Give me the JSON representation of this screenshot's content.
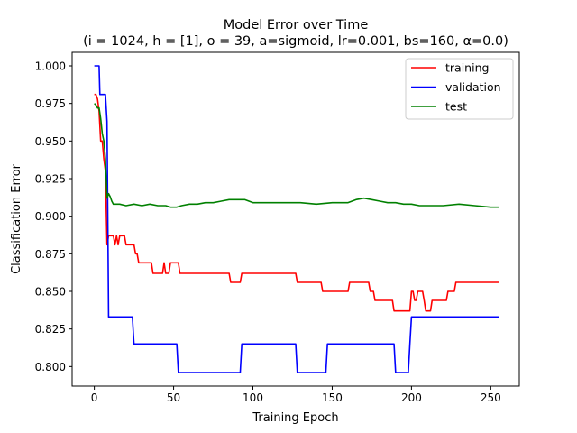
{
  "chart_data": {
    "type": "line",
    "title": "Model Error over Time",
    "subtitle": "(i = 1024, h = [1], o = 39, a=sigmoid, lr=0.001, bs=160, α=0.0)",
    "xlabel": "Training Epoch",
    "ylabel": "Classification Error",
    "xlim": [
      -14,
      268
    ],
    "ylim": [
      0.787,
      1.009
    ],
    "xticks": [
      0,
      50,
      100,
      150,
      200,
      250
    ],
    "yticks": [
      0.8,
      0.825,
      0.85,
      0.875,
      0.9,
      0.925,
      0.95,
      0.975,
      1.0
    ],
    "ytick_format": 3,
    "grid": false,
    "legend_position": "top-right",
    "series": [
      {
        "name": "training",
        "color": "#ff0000",
        "points": [
          [
            0,
            0.981
          ],
          [
            1,
            0.981
          ],
          [
            2,
            0.978
          ],
          [
            3,
            0.97
          ],
          [
            4,
            0.95
          ],
          [
            5,
            0.95
          ],
          [
            6,
            0.938
          ],
          [
            7,
            0.93
          ],
          [
            8,
            0.881
          ],
          [
            9,
            0.887
          ],
          [
            12,
            0.887
          ],
          [
            13,
            0.881
          ],
          [
            14,
            0.887
          ],
          [
            15,
            0.881
          ],
          [
            16,
            0.887
          ],
          [
            19,
            0.887
          ],
          [
            20,
            0.881
          ],
          [
            25,
            0.881
          ],
          [
            26,
            0.875
          ],
          [
            27,
            0.875
          ],
          [
            28,
            0.869
          ],
          [
            36,
            0.869
          ],
          [
            37,
            0.862
          ],
          [
            43,
            0.862
          ],
          [
            44,
            0.869
          ],
          [
            45,
            0.862
          ],
          [
            47,
            0.862
          ],
          [
            48,
            0.869
          ],
          [
            53,
            0.869
          ],
          [
            54,
            0.862
          ],
          [
            85,
            0.862
          ],
          [
            86,
            0.856
          ],
          [
            92,
            0.856
          ],
          [
            93,
            0.862
          ],
          [
            127,
            0.862
          ],
          [
            128,
            0.856
          ],
          [
            143,
            0.856
          ],
          [
            144,
            0.85
          ],
          [
            160,
            0.85
          ],
          [
            161,
            0.856
          ],
          [
            173,
            0.856
          ],
          [
            174,
            0.85
          ],
          [
            176,
            0.85
          ],
          [
            177,
            0.844
          ],
          [
            188,
            0.844
          ],
          [
            189,
            0.837
          ],
          [
            199,
            0.837
          ],
          [
            200,
            0.85
          ],
          [
            201,
            0.85
          ],
          [
            202,
            0.844
          ],
          [
            203,
            0.844
          ],
          [
            204,
            0.85
          ],
          [
            207,
            0.85
          ],
          [
            208,
            0.844
          ],
          [
            209,
            0.837
          ],
          [
            212,
            0.837
          ],
          [
            213,
            0.844
          ],
          [
            222,
            0.844
          ],
          [
            223,
            0.85
          ],
          [
            227,
            0.85
          ],
          [
            228,
            0.856
          ],
          [
            255,
            0.856
          ]
        ]
      },
      {
        "name": "validation",
        "color": "#0000ff",
        "points": [
          [
            0,
            1.0
          ],
          [
            3,
            1.0
          ],
          [
            3.5,
            0.981
          ],
          [
            7,
            0.981
          ],
          [
            8,
            0.963
          ],
          [
            9,
            0.833
          ],
          [
            24,
            0.833
          ],
          [
            25,
            0.815
          ],
          [
            52,
            0.815
          ],
          [
            53,
            0.796
          ],
          [
            92,
            0.796
          ],
          [
            93,
            0.815
          ],
          [
            127,
            0.815
          ],
          [
            128,
            0.796
          ],
          [
            146,
            0.796
          ],
          [
            147,
            0.815
          ],
          [
            189,
            0.815
          ],
          [
            190,
            0.796
          ],
          [
            198,
            0.796
          ],
          [
            199,
            0.815
          ],
          [
            200,
            0.833
          ],
          [
            255,
            0.833
          ]
        ]
      },
      {
        "name": "test",
        "color": "#008000",
        "points": [
          [
            0,
            0.975
          ],
          [
            1,
            0.974
          ],
          [
            2,
            0.972
          ],
          [
            3,
            0.972
          ],
          [
            4,
            0.965
          ],
          [
            5,
            0.955
          ],
          [
            6,
            0.95
          ],
          [
            7,
            0.938
          ],
          [
            8,
            0.912
          ],
          [
            9,
            0.915
          ],
          [
            10,
            0.913
          ],
          [
            11,
            0.91
          ],
          [
            12,
            0.908
          ],
          [
            14,
            0.908
          ],
          [
            16,
            0.908
          ],
          [
            20,
            0.907
          ],
          [
            25,
            0.908
          ],
          [
            30,
            0.907
          ],
          [
            35,
            0.908
          ],
          [
            40,
            0.907
          ],
          [
            45,
            0.907
          ],
          [
            48,
            0.906
          ],
          [
            52,
            0.906
          ],
          [
            55,
            0.907
          ],
          [
            60,
            0.908
          ],
          [
            65,
            0.908
          ],
          [
            70,
            0.909
          ],
          [
            75,
            0.909
          ],
          [
            80,
            0.91
          ],
          [
            85,
            0.911
          ],
          [
            90,
            0.911
          ],
          [
            95,
            0.911
          ],
          [
            100,
            0.909
          ],
          [
            110,
            0.909
          ],
          [
            120,
            0.909
          ],
          [
            130,
            0.909
          ],
          [
            140,
            0.908
          ],
          [
            150,
            0.909
          ],
          [
            160,
            0.909
          ],
          [
            165,
            0.911
          ],
          [
            170,
            0.912
          ],
          [
            175,
            0.911
          ],
          [
            180,
            0.91
          ],
          [
            185,
            0.909
          ],
          [
            190,
            0.909
          ],
          [
            195,
            0.908
          ],
          [
            200,
            0.908
          ],
          [
            205,
            0.907
          ],
          [
            210,
            0.907
          ],
          [
            220,
            0.907
          ],
          [
            230,
            0.908
          ],
          [
            240,
            0.907
          ],
          [
            250,
            0.906
          ],
          [
            255,
            0.906
          ]
        ]
      }
    ]
  }
}
